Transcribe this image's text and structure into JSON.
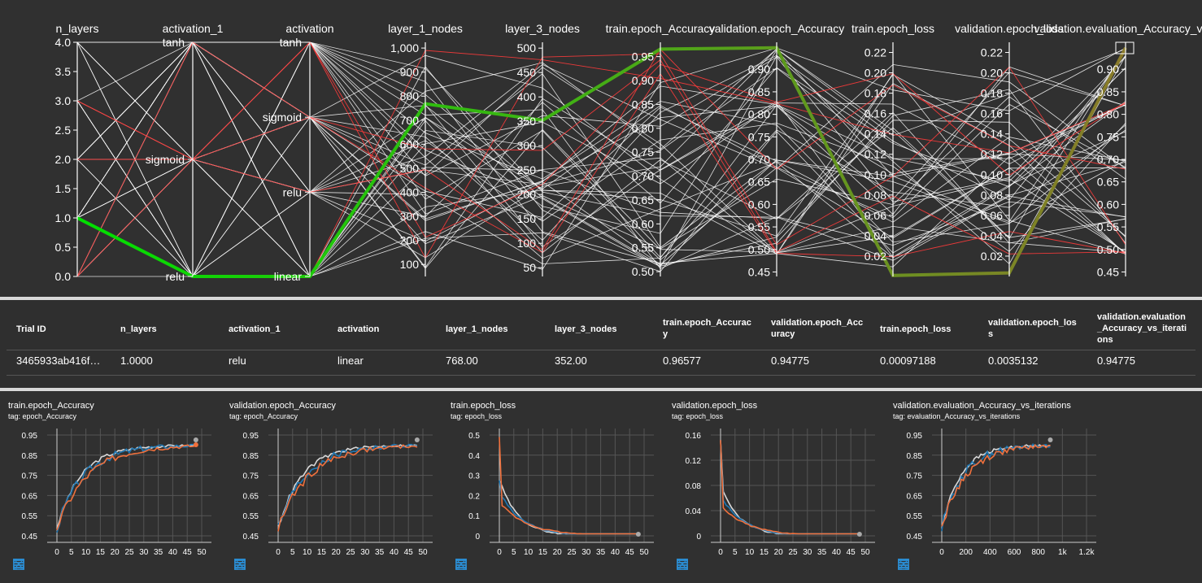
{
  "parallel_coords": {
    "axes": [
      {
        "key": "n_layers",
        "label": "n_layers",
        "type": "numeric",
        "range": [
          0,
          4
        ],
        "ticks": [
          "0.0",
          "0.5",
          "1.0",
          "1.5",
          "2.0",
          "2.5",
          "3.0",
          "3.5",
          "4.0"
        ],
        "tick_values": [
          0,
          0.5,
          1,
          1.5,
          2,
          2.5,
          3,
          3.5,
          4
        ]
      },
      {
        "key": "activation_1",
        "label": "activation_1",
        "type": "categorical",
        "ticks": [
          "tanh",
          "sigmoid",
          "relu"
        ],
        "tick_positions": [
          0,
          0.5,
          1
        ]
      },
      {
        "key": "activation",
        "label": "activation",
        "type": "categorical",
        "ticks": [
          "tanh",
          "sigmoid",
          "relu",
          "linear"
        ],
        "tick_positions": [
          0,
          0.32,
          0.64,
          1
        ]
      },
      {
        "key": "layer_1_nodes",
        "label": "layer_1_nodes",
        "type": "numeric",
        "range": [
          50,
          1024
        ],
        "ticks": [
          "100",
          "200",
          "300",
          "400",
          "500",
          "600",
          "700",
          "800",
          "900",
          "1,000"
        ],
        "tick_values": [
          100,
          200,
          300,
          400,
          500,
          600,
          700,
          800,
          900,
          1000
        ]
      },
      {
        "key": "layer_3_nodes",
        "label": "layer_3_nodes",
        "type": "numeric",
        "range": [
          32,
          512
        ],
        "ticks": [
          "50",
          "100",
          "150",
          "200",
          "250",
          "300",
          "350",
          "400",
          "450",
          "500"
        ],
        "tick_values": [
          50,
          100,
          150,
          200,
          250,
          300,
          350,
          400,
          450,
          500
        ]
      },
      {
        "key": "train_acc",
        "label": "train.epoch_Accuracy",
        "type": "numeric",
        "range": [
          0.49,
          0.98
        ],
        "ticks": [
          "0.50",
          "0.55",
          "0.60",
          "0.65",
          "0.70",
          "0.75",
          "0.80",
          "0.85",
          "0.90",
          "0.95"
        ],
        "tick_values": [
          0.5,
          0.55,
          0.6,
          0.65,
          0.7,
          0.75,
          0.8,
          0.85,
          0.9,
          0.95
        ]
      },
      {
        "key": "val_acc",
        "label": "validation.epoch_Accuracy",
        "type": "numeric",
        "range": [
          0.44,
          0.96
        ],
        "ticks": [
          "0.45",
          "0.50",
          "0.55",
          "0.60",
          "0.65",
          "0.70",
          "0.75",
          "0.80",
          "0.85",
          "0.90"
        ],
        "tick_values": [
          0.45,
          0.5,
          0.55,
          0.6,
          0.65,
          0.7,
          0.75,
          0.8,
          0.85,
          0.9
        ]
      },
      {
        "key": "train_loss",
        "label": "train.epoch_loss",
        "type": "numeric",
        "range": [
          0,
          0.23
        ],
        "ticks": [
          "0.02",
          "0.04",
          "0.06",
          "0.08",
          "0.10",
          "0.12",
          "0.14",
          "0.16",
          "0.18",
          "0.20",
          "0.22"
        ],
        "tick_values": [
          0.02,
          0.04,
          0.06,
          0.08,
          0.1,
          0.12,
          0.14,
          0.16,
          0.18,
          0.2,
          0.22
        ]
      },
      {
        "key": "val_loss",
        "label": "validation.epoch_loss",
        "type": "numeric",
        "range": [
          0,
          0.23
        ],
        "ticks": [
          "0.02",
          "0.04",
          "0.06",
          "0.08",
          "0.10",
          "0.12",
          "0.14",
          "0.16",
          "0.18",
          "0.20",
          "0.22"
        ],
        "tick_values": [
          0.02,
          0.04,
          0.06,
          0.08,
          0.1,
          0.12,
          0.14,
          0.16,
          0.18,
          0.2,
          0.22
        ]
      },
      {
        "key": "val_eval_acc",
        "label": "validation.evaluation_Accuracy_vs_i",
        "type": "numeric",
        "range": [
          0.44,
          0.96
        ],
        "ticks": [
          "0.45",
          "0.50",
          "0.55",
          "0.60",
          "0.65",
          "0.70",
          "0.75",
          "0.80",
          "0.85",
          "0.90"
        ],
        "tick_values": [
          0.45,
          0.5,
          0.55,
          0.6,
          0.65,
          0.7,
          0.75,
          0.8,
          0.85,
          0.9
        ]
      }
    ],
    "highlighted_trial": {
      "n_layers": 1,
      "activation_1": 1,
      "activation": 1,
      "layer_1_nodes": 768,
      "layer_3_nodes": 352,
      "train_acc": 0.96577,
      "val_acc": 0.94775,
      "train_loss": 0.00097188,
      "val_loss": 0.0035132,
      "val_eval_acc": 0.94775
    },
    "colors": {
      "background": "#303030",
      "axis": "#ffffff",
      "line": "#ffffff",
      "top_line": "#ff3b3b",
      "highlight_start": "#00e000",
      "highlight_end": "#8a7a2a"
    }
  },
  "table": {
    "headers": [
      "Trial ID",
      "n_layers",
      "activation_1",
      "activation",
      "layer_1_nodes",
      "layer_3_nodes",
      "train.epoch_Accurac\ny",
      "validation.epoch_Acc\nuracy",
      "train.epoch_loss",
      "validation.epoch_los\ns",
      "validation.evaluation\n_Accuracy_vs_iterati\nons"
    ],
    "row": [
      "3465933ab416f…",
      "1.0000",
      "relu",
      "linear",
      "768.00",
      "352.00",
      "0.96577",
      "0.94775",
      "0.00097188",
      "0.0035132",
      "0.94775"
    ]
  },
  "mini_charts": [
    {
      "title": "train.epoch_Accuracy",
      "tag": "tag: epoch_Accuracy",
      "xticks": [
        "0",
        "5",
        "10",
        "15",
        "20",
        "25",
        "30",
        "35",
        "40",
        "45",
        "50"
      ],
      "yticks": [
        "0.45",
        "0.55",
        "0.65",
        "0.75",
        "0.85",
        "0.95"
      ]
    },
    {
      "title": "validation.epoch_Accuracy",
      "tag": "tag: epoch_Accuracy",
      "xticks": [
        "0",
        "5",
        "10",
        "15",
        "20",
        "25",
        "30",
        "35",
        "40",
        "45",
        "50"
      ],
      "yticks": [
        "0.45",
        "0.55",
        "0.65",
        "0.75",
        "0.85",
        "0.95"
      ]
    },
    {
      "title": "train.epoch_loss",
      "tag": "tag: epoch_loss",
      "xticks": [
        "0",
        "5",
        "10",
        "15",
        "20",
        "25",
        "30",
        "35",
        "40",
        "45",
        "50"
      ],
      "yticks": [
        "0",
        "0.1",
        "0.2",
        "0.3",
        "0.4",
        "0.5"
      ]
    },
    {
      "title": "validation.epoch_loss",
      "tag": "tag: epoch_loss",
      "xticks": [
        "0",
        "5",
        "10",
        "15",
        "20",
        "25",
        "30",
        "35",
        "40",
        "45",
        "50"
      ],
      "yticks": [
        "0",
        "0.04",
        "0.08",
        "0.12",
        "0.16"
      ]
    },
    {
      "title": "validation.evaluation_Accuracy_vs_iterations",
      "tag": "tag: evaluation_Accuracy_vs_iterations",
      "xticks": [
        "0",
        "200",
        "400",
        "600",
        "800",
        "1k",
        "1.2k"
      ],
      "yticks": [
        "0.45",
        "0.55",
        "0.65",
        "0.75",
        "0.85",
        "0.95"
      ]
    }
  ],
  "mini_icons": [
    "fullscreen-icon",
    "list-icon",
    "fit-domain-icon"
  ],
  "series_colors": {
    "white": "#d9d9d9",
    "blue": "#1f78b4",
    "orange": "#f0703c"
  }
}
